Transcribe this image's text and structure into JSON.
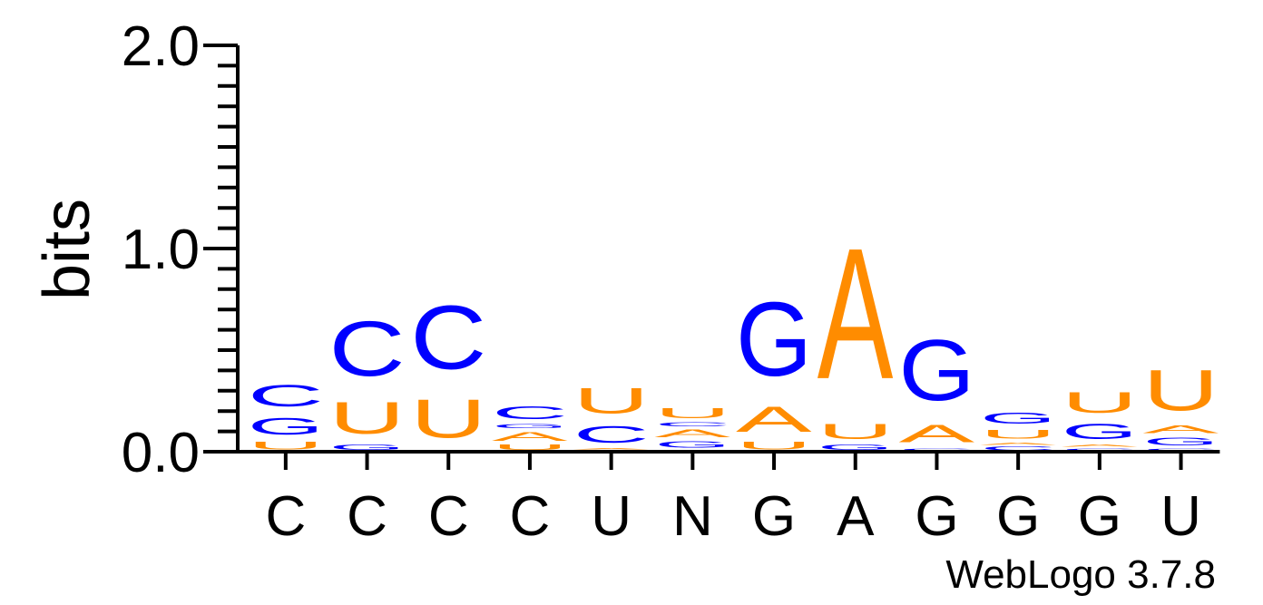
{
  "chart_data": {
    "type": "sequence-logo",
    "ylabel": "bits",
    "ylim": [
      0,
      2.0
    ],
    "yticks": [
      {
        "value": 0.0,
        "label": "0.0"
      },
      {
        "value": 1.0,
        "label": "1.0"
      },
      {
        "value": 2.0,
        "label": "2.0"
      }
    ],
    "colors": {
      "A": "#ff8c00",
      "U": "#ff8c00",
      "C": "#0000ff",
      "G": "#0000ff"
    },
    "positions": [
      {
        "label": "C",
        "stack": [
          {
            "letter": "U",
            "height": 0.06
          },
          {
            "letter": "G",
            "height": 0.13
          },
          {
            "letter": "C",
            "height": 0.17
          }
        ]
      },
      {
        "label": "C",
        "stack": [
          {
            "letter": "G",
            "height": 0.04
          },
          {
            "letter": "U",
            "height": 0.25
          },
          {
            "letter": "C",
            "height": 0.43
          }
        ]
      },
      {
        "label": "C",
        "stack": [
          {
            "letter": "G",
            "height": 0.01
          },
          {
            "letter": "U",
            "height": 0.3
          },
          {
            "letter": "C",
            "height": 0.5
          }
        ]
      },
      {
        "label": "C",
        "stack": [
          {
            "letter": "U",
            "height": 0.04
          },
          {
            "letter": "A",
            "height": 0.07
          },
          {
            "letter": "G",
            "height": 0.03
          },
          {
            "letter": "C",
            "height": 0.1
          }
        ]
      },
      {
        "label": "U",
        "stack": [
          {
            "letter": "G",
            "height": 0.01
          },
          {
            "letter": "A",
            "height": 0.01
          },
          {
            "letter": "C",
            "height": 0.13
          },
          {
            "letter": "U",
            "height": 0.2
          }
        ]
      },
      {
        "label": "N",
        "stack": [
          {
            "letter": "U",
            "height": 0.01
          },
          {
            "letter": "G",
            "height": 0.05
          },
          {
            "letter": "A",
            "height": 0.06
          },
          {
            "letter": "C",
            "height": 0.03
          },
          {
            "letter": "U",
            "height": 0.08
          }
        ]
      },
      {
        "label": "G",
        "stack": [
          {
            "letter": "U",
            "height": 0.06
          },
          {
            "letter": "A",
            "height": 0.2
          },
          {
            "letter": "G",
            "height": 0.58
          }
        ]
      },
      {
        "label": "A",
        "stack": [
          {
            "letter": "G",
            "height": 0.04
          },
          {
            "letter": "U",
            "height": 0.12
          },
          {
            "letter": "A",
            "height": 1.03
          }
        ]
      },
      {
        "label": "G",
        "stack": [
          {
            "letter": "C",
            "height": 0.02
          },
          {
            "letter": "A",
            "height": 0.14
          },
          {
            "letter": "G",
            "height": 0.48
          }
        ]
      },
      {
        "label": "G",
        "stack": [
          {
            "letter": "C",
            "height": 0.03
          },
          {
            "letter": "A",
            "height": 0.02
          },
          {
            "letter": "U",
            "height": 0.07
          },
          {
            "letter": "G",
            "height": 0.09
          }
        ]
      },
      {
        "label": "G",
        "stack": [
          {
            "letter": "C",
            "height": 0.02
          },
          {
            "letter": "A",
            "height": 0.02
          },
          {
            "letter": "G",
            "height": 0.12
          },
          {
            "letter": "U",
            "height": 0.16
          }
        ]
      },
      {
        "label": "U",
        "stack": [
          {
            "letter": "C",
            "height": 0.02
          },
          {
            "letter": "G",
            "height": 0.06
          },
          {
            "letter": "A",
            "height": 0.06
          },
          {
            "letter": "U",
            "height": 0.32
          }
        ]
      }
    ]
  },
  "footer": {
    "credit": "WebLogo 3.7.8"
  }
}
